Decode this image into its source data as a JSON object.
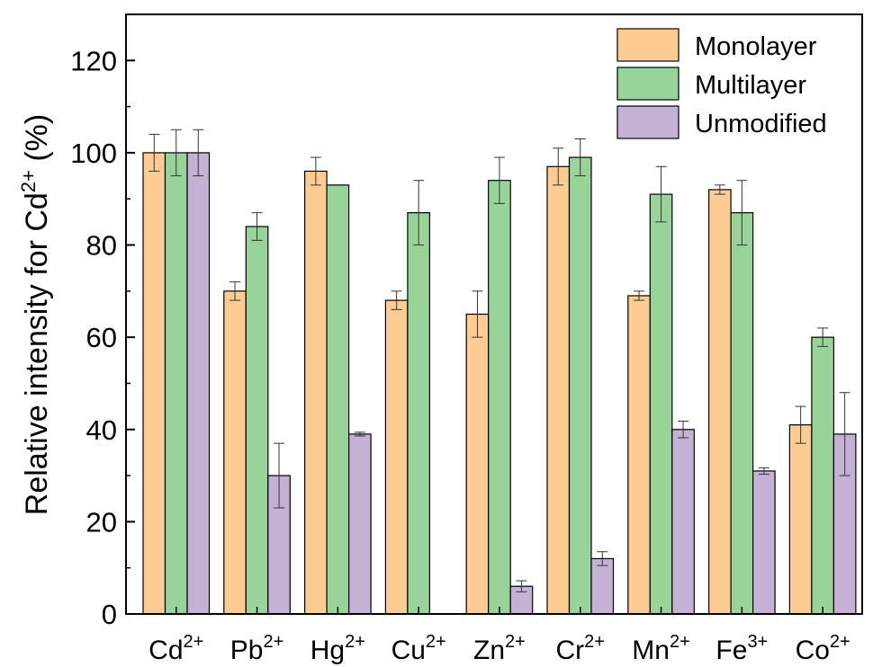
{
  "chart_data": {
    "type": "bar",
    "ylabel_main": "Relative intensity for Cd",
    "ylabel_sup": "2+",
    "ylabel_unit": " (%)",
    "ylim": [
      0,
      130
    ],
    "yticks": [
      0,
      20,
      40,
      60,
      80,
      100,
      120
    ],
    "legend_position": "top-right",
    "categories": [
      {
        "base": "Cd",
        "sup": "2+"
      },
      {
        "base": "Pb",
        "sup": "2+"
      },
      {
        "base": "Hg",
        "sup": "2+"
      },
      {
        "base": "Cu",
        "sup": "2+"
      },
      {
        "base": "Zn",
        "sup": "2+"
      },
      {
        "base": "Cr",
        "sup": "2+"
      },
      {
        "base": "Mn",
        "sup": "2+"
      },
      {
        "base": "Fe",
        "sup": "3+"
      },
      {
        "base": "Co",
        "sup": "2+"
      }
    ],
    "series": [
      {
        "name": "Monolayer",
        "color": "#fdcc92",
        "values": [
          100,
          70,
          96,
          68,
          65,
          97,
          69,
          92,
          41
        ],
        "errors": [
          4,
          2,
          3,
          2,
          5,
          4,
          1,
          1,
          4
        ]
      },
      {
        "name": "Multilayer",
        "color": "#98d49a",
        "values": [
          100,
          84,
          93,
          87,
          94,
          99,
          91,
          87,
          60
        ],
        "errors": [
          5,
          3,
          0,
          7,
          5,
          4,
          6,
          7,
          2
        ]
      },
      {
        "name": "Unmodified",
        "color": "#c5b0d6",
        "values": [
          100,
          30,
          39,
          null,
          6,
          12,
          40,
          31,
          39
        ],
        "errors": [
          5,
          7,
          0.4,
          null,
          1.2,
          1.5,
          1.8,
          0.7,
          9
        ]
      }
    ]
  }
}
